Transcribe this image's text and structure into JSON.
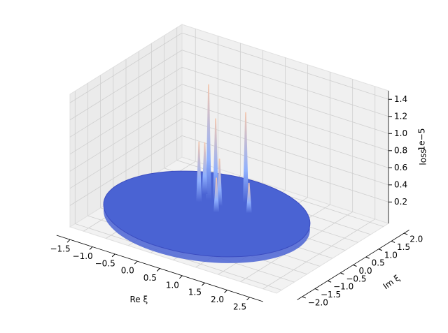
{
  "chart_data": {
    "type": "surface3d",
    "xlabel": "Re ξ",
    "ylabel": "Im ξ",
    "zlabel": "loss",
    "offset_text": "1e−5",
    "xlim": [
      -1.8,
      2.8
    ],
    "ylim": [
      -2.2,
      2.2
    ],
    "zlim": [
      -0.05,
      1.5
    ],
    "xticks": [
      {
        "value": -1.5,
        "label": "−1.5"
      },
      {
        "value": -1.0,
        "label": "−1.0"
      },
      {
        "value": -0.5,
        "label": "−0.5"
      },
      {
        "value": 0,
        "label": "0.0"
      },
      0.5,
      {
        "value": 1,
        "label": "1.0"
      },
      1.5,
      {
        "value": 2,
        "label": "2.0"
      },
      2.5
    ],
    "yticks": [
      {
        "value": -2,
        "label": "−2.0"
      },
      {
        "value": -1.5,
        "label": "−1.5"
      },
      {
        "value": -1,
        "label": "−1.0"
      },
      {
        "value": -0.5,
        "label": "−0.5"
      },
      {
        "value": 0,
        "label": "0.0"
      },
      0.5,
      {
        "value": 1,
        "label": "1.0"
      },
      1.5,
      {
        "value": 2,
        "label": "2.0"
      }
    ],
    "zticks": [
      0.2,
      0.4,
      0.6,
      0.8,
      {
        "value": 1,
        "label": "1.0"
      },
      1.2,
      1.4
    ],
    "radius": 2,
    "surface_color": "#4a63d3",
    "peak_color": "#f4c6ac",
    "grid": true,
    "spikes": {
      "x": [
        -0.3,
        0.3,
        -0.2,
        -0.4,
        0.0,
        -0.5,
        0.1,
        0.6
      ],
      "y": [
        0.6,
        1.0,
        0.7,
        0.4,
        0.5,
        0.8,
        0.2,
        0.6
      ],
      "values": [
        1.35,
        1.05,
        0.95,
        0.7,
        0.55,
        0.6,
        0.4,
        0.35
      ]
    }
  }
}
